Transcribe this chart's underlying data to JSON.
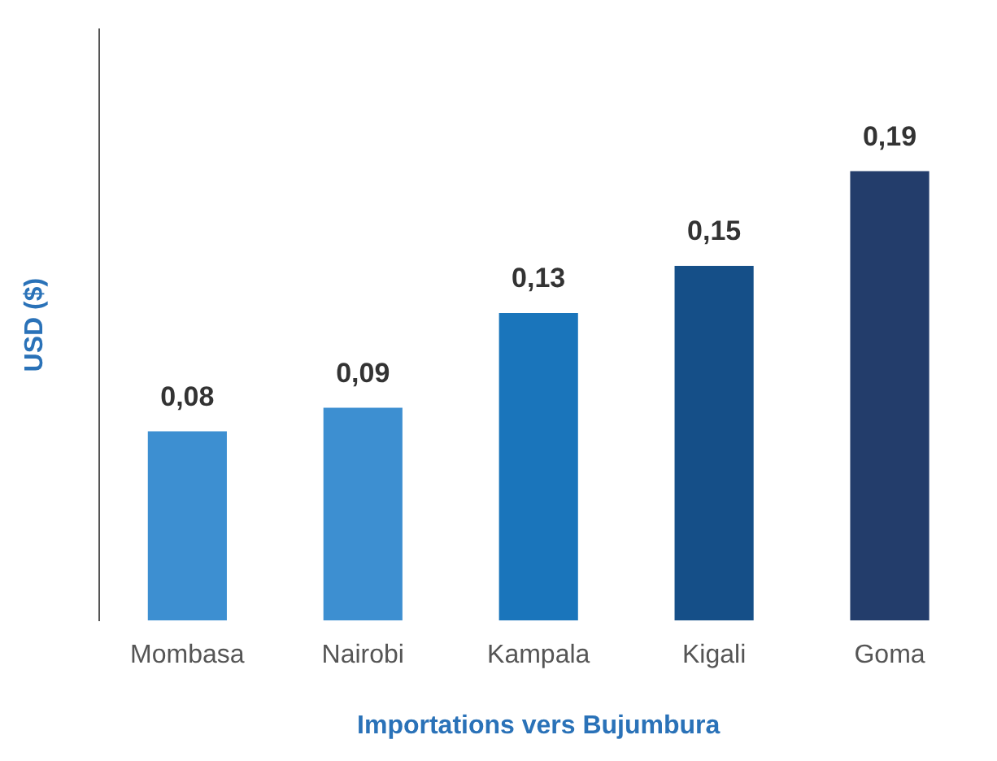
{
  "chart_data": {
    "type": "bar",
    "xlabel": "Importations vers Bujumbura",
    "ylabel": "USD ($)",
    "categories": [
      "Mombasa",
      "Nairobi",
      "Kampala",
      "Kigali",
      "Goma"
    ],
    "values": [
      0.08,
      0.09,
      0.13,
      0.15,
      0.19
    ],
    "colors": [
      "#3d8fd1",
      "#3d8fd1",
      "#1a75bb",
      "#154f88",
      "#233d6b"
    ],
    "value_labels": [
      "0,08",
      "0,09",
      "0,13",
      "0,15",
      "0,19"
    ],
    "grid": false,
    "legend": false
  }
}
